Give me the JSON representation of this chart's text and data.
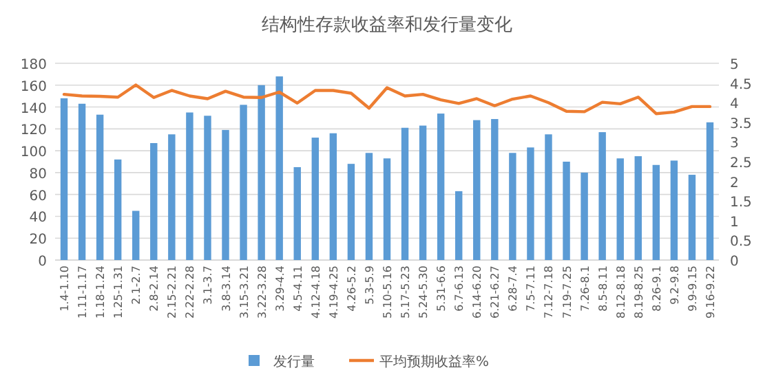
{
  "chart_data": {
    "type": "bar",
    "title": "结构性存款收益率和发行量变化",
    "categories": [
      "1.4-1.10",
      "1.11-1.17",
      "1.18-1.24",
      "1.25-1.31",
      "2.1-2.7",
      "2.8-2.14",
      "2.15-2.21",
      "2.22-2.28",
      "3.1-3.7",
      "3.8-3.14",
      "3.15-3.21",
      "3.22-3.28",
      "3.29-4.4",
      "4.5-4.11",
      "4.12-4.18",
      "4.19-4.25",
      "4.26-5.2",
      "5.3-5.9",
      "5.10-5.16",
      "5.17-5.23",
      "5.24-5.30",
      "5.31-6.6",
      "6.7-6.13",
      "6.14-6.20",
      "6.21-6.27",
      "6.28-7.4",
      "7.5-7.11",
      "7.12-7.18",
      "7.19-7.25",
      "7.26-8.1",
      "8.5-8.11",
      "8.12-8.18",
      "8.19-8.25",
      "8.26-9.1",
      "9.2-9.8",
      "9.9-9.15",
      "9.16-9.22"
    ],
    "series": [
      {
        "name": "发行量",
        "color": "#5b9bd5",
        "values": [
          148,
          143,
          133,
          92,
          45,
          107,
          115,
          135,
          132,
          119,
          142,
          160,
          168,
          85,
          112,
          116,
          88,
          98,
          93,
          121,
          123,
          134,
          63,
          128,
          129,
          98,
          103,
          115,
          90,
          80,
          117,
          93,
          95,
          87,
          91,
          78,
          126
        ]
      },
      {
        "name": "平均预期收益率%",
        "type": "line",
        "axis": "y2",
        "color": "#ed7d31",
        "values": [
          4.21,
          4.17,
          4.16,
          4.14,
          4.45,
          4.13,
          4.31,
          4.17,
          4.1,
          4.29,
          4.14,
          4.13,
          4.27,
          3.99,
          4.31,
          4.31,
          4.24,
          3.86,
          4.38,
          4.17,
          4.21,
          4.07,
          3.98,
          4.1,
          3.92,
          4.09,
          4.17,
          4.0,
          3.78,
          3.77,
          4.01,
          3.97,
          4.14,
          3.72,
          3.76,
          3.9,
          3.9
        ]
      }
    ],
    "ylim": [
      0,
      180
    ],
    "yticks": [
      0,
      20,
      40,
      60,
      80,
      100,
      120,
      140,
      160,
      180
    ],
    "y2lim": [
      0,
      5
    ],
    "y2ticks": [
      0,
      0.5,
      1,
      1.5,
      2,
      2.5,
      3,
      3.5,
      4,
      4.5,
      5
    ],
    "grid": "y",
    "legend": "bottom"
  }
}
